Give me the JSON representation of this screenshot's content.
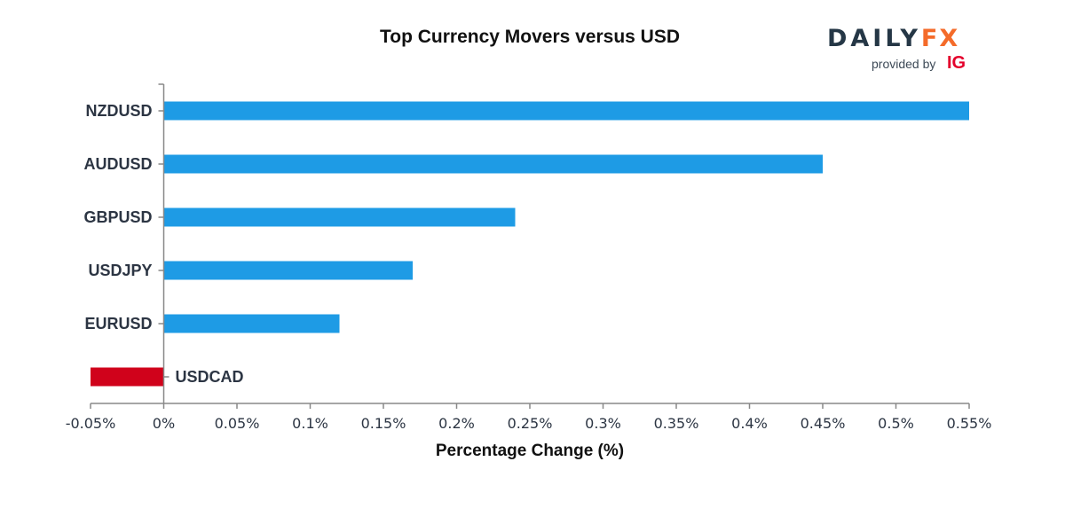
{
  "chart_data": {
    "type": "bar",
    "orientation": "horizontal",
    "title": "Top Currency Movers versus USD",
    "xlabel": "Percentage Change (%)",
    "ylabel": "",
    "categories": [
      "NZDUSD",
      "AUDUSD",
      "GBPUSD",
      "USDJPY",
      "EURUSD",
      "USDCAD"
    ],
    "values": [
      0.55,
      0.45,
      0.24,
      0.17,
      0.12,
      -0.05
    ],
    "xlim": [
      -0.05,
      0.55
    ],
    "xticks": [
      -0.05,
      0,
      0.05,
      0.1,
      0.15,
      0.2,
      0.25,
      0.3,
      0.35,
      0.4,
      0.45,
      0.5,
      0.55
    ],
    "xtick_labels": [
      "-0.05%",
      "0%",
      "0.05%",
      "0.1%",
      "0.15%",
      "0.2%",
      "0.25%",
      "0.3%",
      "0.35%",
      "0.4%",
      "0.45%",
      "0.5%",
      "0.55%"
    ],
    "colors": {
      "positive": "#1e9be5",
      "negative": "#d0021b",
      "axis": "#888888"
    },
    "grid": false,
    "legend": "none"
  },
  "logo": {
    "brand_daily": "DAILY",
    "brand_fx": "FX",
    "provided_by": "provided by",
    "ig": "IG"
  }
}
